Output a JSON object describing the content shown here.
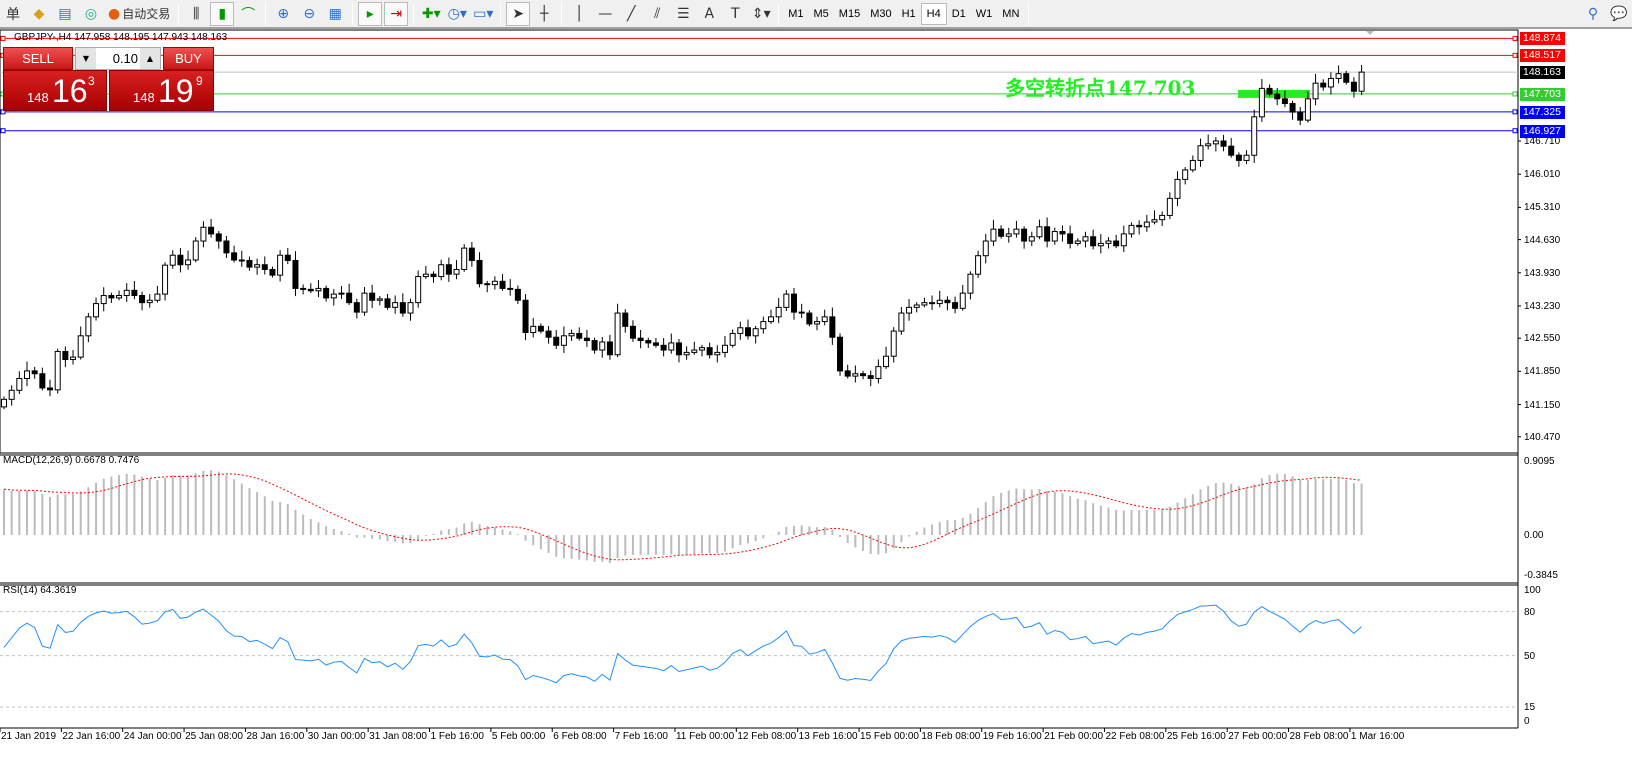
{
  "toolbar": {
    "cut_label": "单",
    "auto_trade": "自动交易",
    "tools": [
      "market-watch-icon",
      "navigator-icon",
      "signals-icon",
      "auto-trading-icon",
      "bar-chart-icon",
      "candlestick-icon",
      "line-chart-icon",
      "zoom-in-icon",
      "zoom-out-icon",
      "tile-windows-icon",
      "autoscroll-icon",
      "chart-shift-icon",
      "new-indicator-icon",
      "periods-icon",
      "templates-icon",
      "cursor-icon",
      "crosshair-icon",
      "vertical-line-icon",
      "horizontal-line-icon",
      "trendline-icon",
      "fibonacci-icon",
      "equidistant-channel-icon",
      "text-icon",
      "text-label-icon",
      "arrows-icon"
    ],
    "timeframes": [
      "M1",
      "M5",
      "M15",
      "M30",
      "H1",
      "H4",
      "D1",
      "W1",
      "MN"
    ],
    "active_timeframe": "H4"
  },
  "chart": {
    "symbol_line": "GBPJPY-,H4  147.958 148.195 147.943 148.163",
    "trade": {
      "sell": "SELL",
      "buy": "BUY",
      "lot": "0.10",
      "sell_small": "148",
      "sell_big": "16",
      "sell_sup": "3",
      "buy_small": "148",
      "buy_big": "19",
      "buy_sup": "9"
    },
    "annotation": "多空转折点147.703",
    "hlines": [
      {
        "price": 148.874,
        "label": "148.874",
        "color": "#ff0000"
      },
      {
        "price": 148.517,
        "label": "148.517",
        "color": "#ff0000"
      },
      {
        "price": 148.163,
        "label": "148.163",
        "color": "#000000",
        "line": "#c0c0c0"
      },
      {
        "price": 147.703,
        "label": "147.703",
        "color": "#33cc33"
      },
      {
        "price": 147.325,
        "label": "147.325",
        "color": "#0000ff"
      },
      {
        "price": 146.927,
        "label": "146.927",
        "color": "#0000ff"
      }
    ],
    "price_ticks": [
      "146.710",
      "146.010",
      "145.310",
      "144.630",
      "143.930",
      "143.230",
      "142.550",
      "141.850",
      "141.150",
      "140.470"
    ],
    "macd": {
      "label": "MACD(12,26,9) 0.6678 0.7476",
      "ticks": [
        "0.9095",
        "0.00",
        "-0.3845"
      ],
      "hist_color": "#bbbbbb",
      "signal_color": "#ff0000"
    },
    "rsi": {
      "label": "RSI(14) 64.3619",
      "ticks": [
        "100",
        "80",
        "50",
        "15",
        "0"
      ],
      "color": "#1e90ff"
    },
    "time_labels": [
      "21 Jan 2019",
      "22 Jan 16:00",
      "24 Jan 00:00",
      "25 Jan 08:00",
      "28 Jan 16:00",
      "30 Jan 00:00",
      "31 Jan 08:00",
      "1 Feb 16:00",
      "5 Feb 00:00",
      "6 Feb 08:00",
      "7 Feb 16:00",
      "11 Feb 00:00",
      "12 Feb 08:00",
      "13 Feb 16:00",
      "15 Feb 00:00",
      "18 Feb 08:00",
      "19 Feb 16:00",
      "21 Feb 00:00",
      "22 Feb 08:00",
      "25 Feb 16:00",
      "27 Feb 00:00",
      "28 Feb 08:00",
      "1 Mar 16:00"
    ]
  },
  "chart_data": {
    "type": "candlestick",
    "symbol": "GBPJPY-",
    "timeframe": "H4",
    "last_ohlc": {
      "open": 147.958,
      "high": 148.195,
      "low": 147.943,
      "close": 148.163
    },
    "ylim": [
      140.47,
      148.874
    ],
    "closes": [
      141.26,
      141.45,
      141.7,
      141.86,
      141.8,
      141.5,
      141.46,
      142.27,
      142.1,
      142.15,
      142.6,
      143.0,
      143.28,
      143.45,
      143.4,
      143.45,
      143.56,
      143.45,
      143.3,
      143.35,
      143.48,
      144.09,
      144.3,
      144.1,
      144.2,
      144.6,
      144.89,
      144.75,
      144.6,
      144.35,
      144.2,
      144.19,
      144.05,
      144.1,
      144.0,
      143.88,
      144.3,
      144.19,
      143.6,
      143.58,
      143.55,
      143.6,
      143.4,
      143.48,
      143.5,
      143.3,
      143.1,
      143.5,
      143.35,
      143.38,
      143.2,
      143.3,
      143.08,
      143.3,
      143.85,
      143.9,
      143.85,
      144.1,
      143.9,
      144.0,
      144.45,
      144.19,
      143.7,
      143.68,
      143.75,
      143.6,
      143.58,
      143.35,
      142.67,
      142.8,
      142.7,
      142.57,
      142.4,
      142.6,
      142.65,
      142.55,
      142.5,
      142.3,
      142.47,
      142.2,
      143.08,
      142.8,
      142.55,
      142.5,
      142.45,
      142.4,
      142.3,
      142.45,
      142.2,
      142.25,
      142.3,
      142.35,
      142.2,
      142.25,
      142.4,
      142.65,
      142.77,
      142.6,
      142.75,
      142.9,
      143.0,
      143.2,
      143.48,
      143.1,
      143.08,
      142.85,
      142.9,
      143.0,
      142.57,
      141.86,
      141.75,
      141.8,
      141.76,
      141.7,
      141.95,
      142.17,
      142.7,
      143.08,
      143.2,
      143.25,
      143.3,
      143.28,
      143.35,
      143.3,
      143.18,
      143.5,
      143.9,
      144.29,
      144.6,
      144.85,
      144.7,
      144.75,
      144.85,
      144.6,
      144.69,
      144.9,
      144.6,
      144.8,
      144.75,
      144.55,
      144.6,
      144.69,
      144.5,
      144.55,
      144.6,
      144.5,
      144.75,
      144.93,
      144.9,
      145.0,
      145.05,
      145.14,
      145.5,
      145.9,
      146.1,
      146.3,
      146.61,
      146.65,
      146.71,
      146.6,
      146.41,
      146.3,
      146.41,
      147.22,
      147.82,
      147.7,
      147.6,
      147.5,
      147.32,
      147.15,
      147.6,
      147.93,
      147.85,
      148.03,
      148.13,
      147.95,
      147.76,
      148.163
    ],
    "macd_range": [
      -0.3845,
      0.9095
    ],
    "rsi_levels": [
      80,
      50,
      15
    ],
    "rsi_range": [
      0,
      100
    ]
  }
}
